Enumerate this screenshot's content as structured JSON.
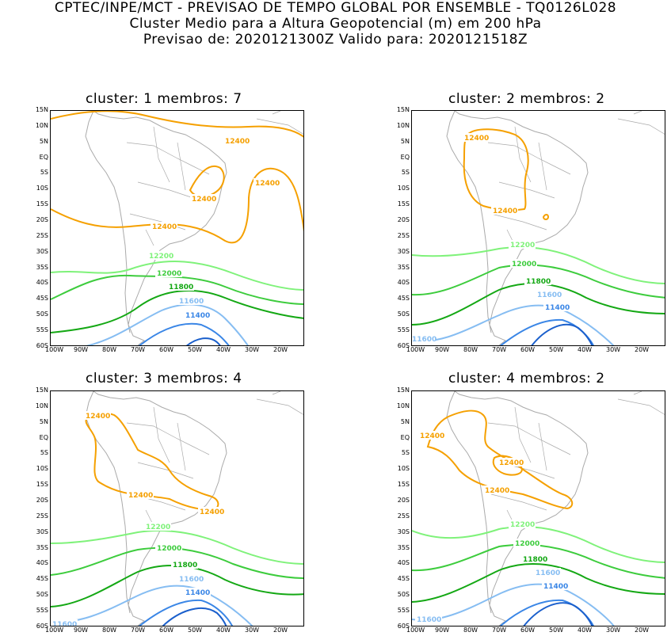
{
  "header": {
    "line1": "CPTEC/INPE/MCT - PREVISAO DE TEMPO GLOBAL POR ENSEMBLE - TQ0126L028",
    "line2": "Cluster Medio para a Altura Geopotencial (m) em 200 hPa",
    "line3": "Previsao de: 2020121300Z   Valido para: 2020121518Z"
  },
  "axes": {
    "lat_labels": [
      "15N",
      "10N",
      "5N",
      "EQ",
      "5S",
      "10S",
      "15S",
      "20S",
      "25S",
      "30S",
      "35S",
      "40S",
      "45S",
      "50S",
      "55S",
      "60S"
    ],
    "lon_labels": [
      "100W",
      "90W",
      "80W",
      "70W",
      "60W",
      "50W",
      "40W",
      "30W",
      "20W"
    ]
  },
  "colors": {
    "c12400": "#f5a000",
    "c12200": "#7ff27a",
    "c12000": "#3dcc3d",
    "c11800": "#14a814",
    "c11600": "#86bdf2",
    "c11400": "#3a86e6",
    "c11200": "#1a5fcc",
    "land": "#aaaaaa"
  },
  "panels": [
    {
      "title": "cluster: 1   membros: 7",
      "labels": [
        "12400",
        "12400",
        "12400",
        "12400",
        "12200",
        "12000",
        "11800",
        "11600",
        "11400"
      ]
    },
    {
      "title": "cluster: 2   membros: 2",
      "labels": [
        "12400",
        "12400",
        "12200",
        "12000",
        "11800",
        "11600",
        "11400",
        "11600"
      ]
    },
    {
      "title": "cluster: 3   membros: 4",
      "labels": [
        "12400",
        "12400",
        "12400",
        "12200",
        "12000",
        "11800",
        "11600",
        "11400",
        "11600"
      ]
    },
    {
      "title": "cluster: 4   membros: 2",
      "labels": [
        "12400",
        "12400",
        "12400",
        "12200",
        "12000",
        "11800",
        "11600",
        "11400",
        "11600"
      ]
    }
  ]
}
